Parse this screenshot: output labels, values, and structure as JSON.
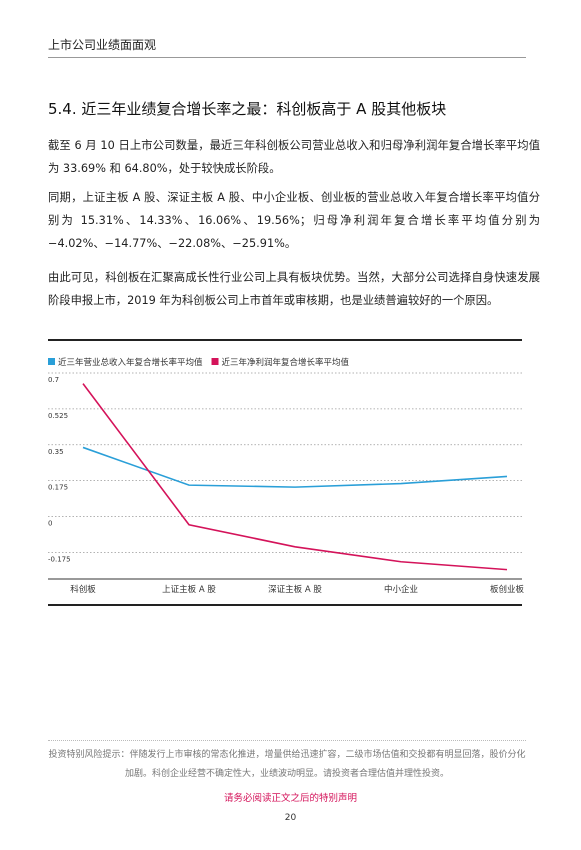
{
  "header": {
    "title": "上市公司业绩面面观"
  },
  "section": {
    "title": "5.4. 近三年业绩复合增长率之最：科创板高于 A 股其他板块"
  },
  "paragraphs": [
    "截至 6 月 10 日上市公司数量，最近三年科创板公司营业总收入和归母净利润年复合增长率平均值为 33.69% 和 64.80%，处于较快成长阶段。",
    "同期，上证主板 A 股、深证主板 A 股、中小企业板、创业板的营业总收入年复合增长率平均值分别为 15.31%、14.33%、16.06%、19.56%；归母净利润年复合增长率平均值分别为 −4.02%、−14.77%、−22.08%、−25.91%。",
    "由此可见，科创板在汇聚高成长性行业公司上具有板块优势。当然，大部分公司选择自身快速发展阶段申报上市，2019 年为科创板公司上市首年或审核期，也是业绩普遍较好的一个原因。"
  ],
  "chart_data": {
    "type": "line",
    "categories": [
      "科创板",
      "上证主板 A 股",
      "深证主板 A 股",
      "中小企业",
      "板创业板"
    ],
    "series": [
      {
        "name": "近三年营业总收入年复合增长率平均值",
        "color": "#2a9fd8",
        "values": [
          0.3369,
          0.1531,
          0.1433,
          0.1606,
          0.1956
        ]
      },
      {
        "name": "近三年净利润年复合增长率平均值",
        "color": "#d4135a",
        "values": [
          0.648,
          -0.0402,
          -0.1477,
          -0.2208,
          -0.2591
        ]
      }
    ],
    "ylim": [
      -0.3,
      0.7
    ],
    "yticks": [
      0.7,
      0.525,
      0.35,
      0.175,
      0,
      -0.175
    ],
    "grid": true
  },
  "footer": {
    "risk": "投资特别风险提示：伴随发行上市审核的常态化推进，增量供给迅速扩容，二级市场估值和交投都有明显回落，股价分化加剧。科创企业经营不确定性大，业绩波动明显。请投资者合理估值并理性投资。",
    "notice": "请务必阅读正文之后的特别声明",
    "page": "20"
  }
}
